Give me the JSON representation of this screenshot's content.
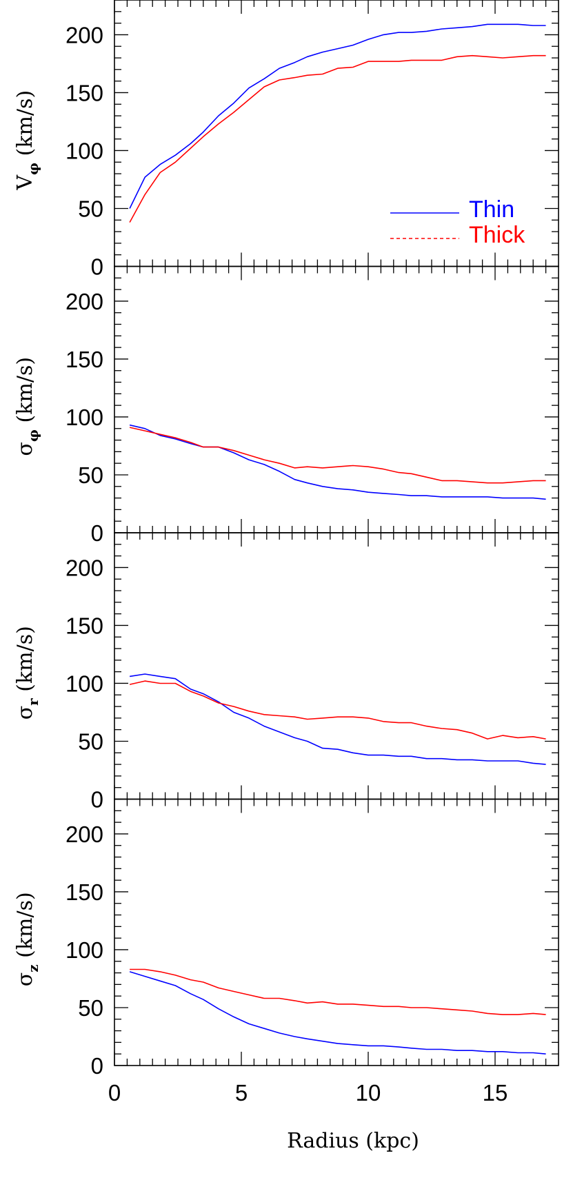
{
  "chart_data": {
    "type": "line",
    "xlabel": "Radius (kpc)",
    "xlim": [
      0,
      17.5
    ],
    "x_ticks": [
      "0",
      "5",
      "10",
      "15"
    ],
    "y_ticks": [
      "0",
      "50",
      "100",
      "150",
      "200"
    ],
    "ylim": [
      0,
      230
    ],
    "grid": false,
    "legend": {
      "placement": "inside-top-panel-right",
      "entries": [
        {
          "name": "Thin",
          "color": "#0000ff",
          "style": "solid"
        },
        {
          "name": "Thick",
          "color": "#ff0000",
          "style": "dashed"
        }
      ]
    },
    "x": [
      0.6,
      1.2,
      1.8,
      2.4,
      3.0,
      3.5,
      4.1,
      4.7,
      5.3,
      5.9,
      6.5,
      7.1,
      7.6,
      8.2,
      8.8,
      9.4,
      10.0,
      10.6,
      11.2,
      11.7,
      12.3,
      12.9,
      13.5,
      14.1,
      14.7,
      15.3,
      15.9,
      16.5,
      17.0
    ],
    "panels": [
      {
        "ylabel": "V",
        "ylabel_sub": "φ",
        "ylabel_rest": "(km/s)",
        "series": [
          {
            "name": "Thin",
            "color": "#0000ff",
            "values": [
              50,
              77,
              88,
              96,
              106,
              116,
              130,
              141,
              154,
              162,
              171,
              176,
              181,
              185,
              188,
              191,
              196,
              200,
              202,
              202,
              203,
              205,
              206,
              207,
              209,
              209,
              209,
              208,
              208
            ]
          },
          {
            "name": "Thick",
            "color": "#ff0000",
            "values": [
              38,
              62,
              81,
              90,
              102,
              112,
              123,
              133,
              144,
              155,
              161,
              163,
              165,
              166,
              171,
              172,
              177,
              177,
              177,
              178,
              178,
              178,
              181,
              182,
              181,
              180,
              181,
              182,
              182
            ]
          }
        ]
      },
      {
        "ylabel": "σ",
        "ylabel_sub": "φ",
        "ylabel_rest": "(km/s)",
        "series": [
          {
            "name": "Thin",
            "color": "#0000ff",
            "values": [
              93,
              90,
              84,
              81,
              77,
              74,
              74,
              69,
              63,
              59,
              53,
              46,
              43,
              40,
              38,
              37,
              35,
              34,
              33,
              32,
              32,
              31,
              31,
              31,
              31,
              30,
              30,
              30,
              29
            ]
          },
          {
            "name": "Thick",
            "color": "#ff0000",
            "values": [
              91,
              88,
              85,
              82,
              78,
              74,
              74,
              71,
              67,
              63,
              60,
              56,
              57,
              56,
              57,
              58,
              57,
              55,
              52,
              51,
              48,
              45,
              45,
              44,
              43,
              43,
              44,
              45,
              45
            ]
          }
        ]
      },
      {
        "ylabel": "σ",
        "ylabel_sub": "r",
        "ylabel_rest": "(km/s)",
        "series": [
          {
            "name": "Thin",
            "color": "#0000ff",
            "values": [
              106,
              108,
              106,
              104,
              95,
              91,
              84,
              75,
              70,
              63,
              58,
              53,
              50,
              44,
              43,
              40,
              38,
              38,
              37,
              37,
              35,
              35,
              34,
              34,
              33,
              33,
              33,
              31,
              30
            ]
          },
          {
            "name": "Thick",
            "color": "#ff0000",
            "values": [
              99,
              102,
              100,
              100,
              93,
              89,
              83,
              80,
              76,
              73,
              72,
              71,
              69,
              70,
              71,
              71,
              70,
              67,
              66,
              66,
              63,
              61,
              60,
              57,
              52,
              55,
              53,
              54,
              52
            ]
          }
        ]
      },
      {
        "ylabel": "σ",
        "ylabel_sub": "z",
        "ylabel_rest": "(km/s)",
        "series": [
          {
            "name": "Thin",
            "color": "#0000ff",
            "values": [
              81,
              77,
              73,
              69,
              62,
              57,
              49,
              42,
              36,
              32,
              28,
              25,
              23,
              21,
              19,
              18,
              17,
              17,
              16,
              15,
              14,
              14,
              13,
              13,
              12,
              12,
              11,
              11,
              10
            ]
          },
          {
            "name": "Thick",
            "color": "#ff0000",
            "values": [
              83,
              83,
              81,
              78,
              74,
              72,
              67,
              64,
              61,
              58,
              58,
              56,
              54,
              55,
              53,
              53,
              52,
              51,
              51,
              50,
              50,
              49,
              48,
              47,
              45,
              44,
              44,
              45,
              44
            ]
          }
        ]
      }
    ]
  }
}
